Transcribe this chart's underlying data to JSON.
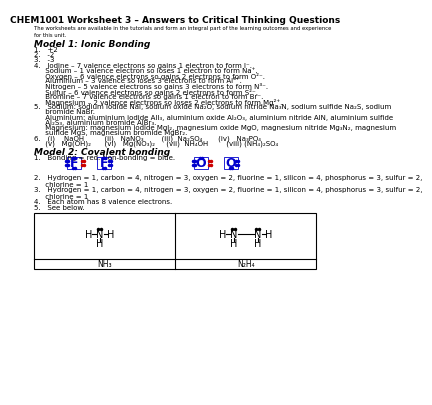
{
  "title": "CHEM1001 Worksheet 3 – Answers to Critical Thinking Questions",
  "subtitle": "The worksheets are available in the tutorials and form an integral part of the learning outcomes and experience\nfor this unit.",
  "model1_heading": "Model 1: Ionic Bonding",
  "model1_items": [
    "1.   +2",
    "2.   -2",
    "3.   -3",
    "4.   Iodine – 7 valence electrons so gains 1 electron to form I⁻.",
    "     Sodium – 1 valence electron so loses 1 electron to form Na⁺.",
    "     Oxygen – 6 valence electrons so gains 2 electrons to form O²⁻.",
    "     Aluminium – 3 valence so loses 3 electrons to form Al³⁺.",
    "     Nitrogen – 5 valence electrons so gains 3 electrons to form N³⁻.",
    "     Sulfur – 6 valence electrons so gains 2 electrons to form S²⁻.",
    "     Bromine – 7 valence electrons so gains 1 electron to form Br⁻.",
    "     Magnesium – 2 valence electrons so loses 2 electrons to form Mg²⁺.",
    "5.   Sodium: sodium iodide NaI, sodium oxide Na₂O, sodium nitride Na₃N, sodium sulfide Na₂S, sodium",
    "     bromide NaBr.",
    "     Aluminium: aluminium iodide AlI₃, aluminium oxide Al₂O₃, aluminium nitride AlN, aluminium sulfide",
    "     Al₂S₃, aluminium bromide AlBr₃.",
    "     Magnesium: magnesium iodide MgI₂, magnesium oxide MgO, magnesium nitride Mg₃N₂, magnesium",
    "     sulfide MgS, magnesium bromide MgBr₂.",
    "6.   (i)    NaOH         (ii)   NaNO₃        (iii)  Na₂SO₄       (iv)   Na₃PO₄",
    "     (v)   Mg(OH)₂      (vi)   Mg(NO₃)₂     (vii)  NH₄OH        (viii) (NH₄)₂SO₄"
  ],
  "model2_heading": "Model 2: Covalent bonding",
  "model2_items": [
    "1.   Bonding = red. Non-bonding = blue.",
    "2.   Hydrogen = 1, carbon = 4, nitrogen = 3, oxygen = 2, fluorine = 1, silicon = 4, phosphorus = 3, sulfur = 2,\n     chlorine = 1",
    "3.   Hydrogen = 1, carbon = 4, nitrogen = 3, oxygen = 2, fluorine = 1, silicon = 4, phosphorus = 3, sulfur = 2,\n     chlorine = 1",
    "4.   Each atom has 8 valence electrons.",
    "5.   See below."
  ],
  "molecule1_label": "NH₃",
  "molecule2_label": "N₂H₄",
  "bg_color": "#ffffff",
  "text_color": "#000000",
  "title_fontsize": 6.5,
  "body_fontsize": 5.0,
  "heading_fontsize": 6.5,
  "f_color": "#0000cc",
  "o_color": "#0000cc",
  "red_color": "#cc0000",
  "blue_color": "#0000cc"
}
